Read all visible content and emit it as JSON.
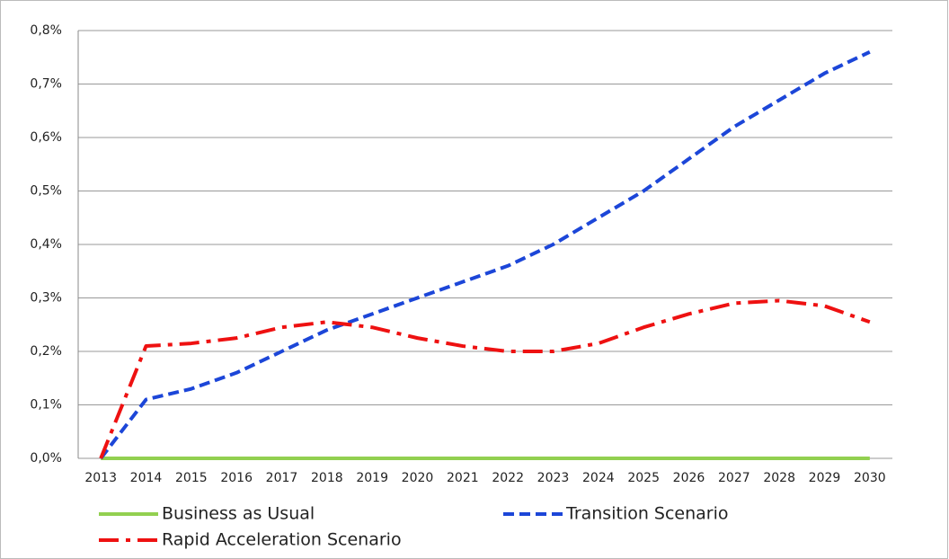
{
  "chart_data": {
    "type": "line",
    "categories": [
      "2013",
      "2014",
      "2015",
      "2016",
      "2017",
      "2018",
      "2019",
      "2020",
      "2021",
      "2022",
      "2023",
      "2024",
      "2025",
      "2026",
      "2027",
      "2028",
      "2029",
      "2030"
    ],
    "series": [
      {
        "name": "Business as Usual",
        "color": "#92d050",
        "dash": "solid",
        "values": [
          0,
          0,
          0,
          0,
          0,
          0,
          0,
          0,
          0,
          0,
          0,
          0,
          0,
          0,
          0,
          0,
          0,
          0
        ]
      },
      {
        "name": "Transition Scenario",
        "color": "#1c46d8",
        "dash": "dash",
        "values": [
          0,
          0.11,
          0.13,
          0.16,
          0.2,
          0.24,
          0.27,
          0.3,
          0.33,
          0.36,
          0.4,
          0.45,
          0.5,
          0.56,
          0.62,
          0.67,
          0.72,
          0.76
        ]
      },
      {
        "name": "Rapid Acceleration Scenario",
        "color": "#ee1111",
        "dash": "dashdot",
        "values": [
          0,
          0.21,
          0.215,
          0.225,
          0.245,
          0.255,
          0.245,
          0.225,
          0.21,
          0.2,
          0.2,
          0.215,
          0.245,
          0.27,
          0.29,
          0.295,
          0.285,
          0.255
        ]
      }
    ],
    "ylim": [
      0,
      0.8
    ],
    "yticks": [
      {
        "value": 0,
        "label": "0,0%"
      },
      {
        "value": 0.1,
        "label": "0,1%"
      },
      {
        "value": 0.2,
        "label": "0,2%"
      },
      {
        "value": 0.3,
        "label": "0,3%"
      },
      {
        "value": 0.4,
        "label": "0,4%"
      },
      {
        "value": 0.5,
        "label": "0,5%"
      },
      {
        "value": 0.6,
        "label": "0,6%"
      },
      {
        "value": 0.7,
        "label": "0,7%"
      },
      {
        "value": 0.8,
        "label": "0,8%"
      }
    ],
    "grid": true,
    "legend": "bottom"
  }
}
